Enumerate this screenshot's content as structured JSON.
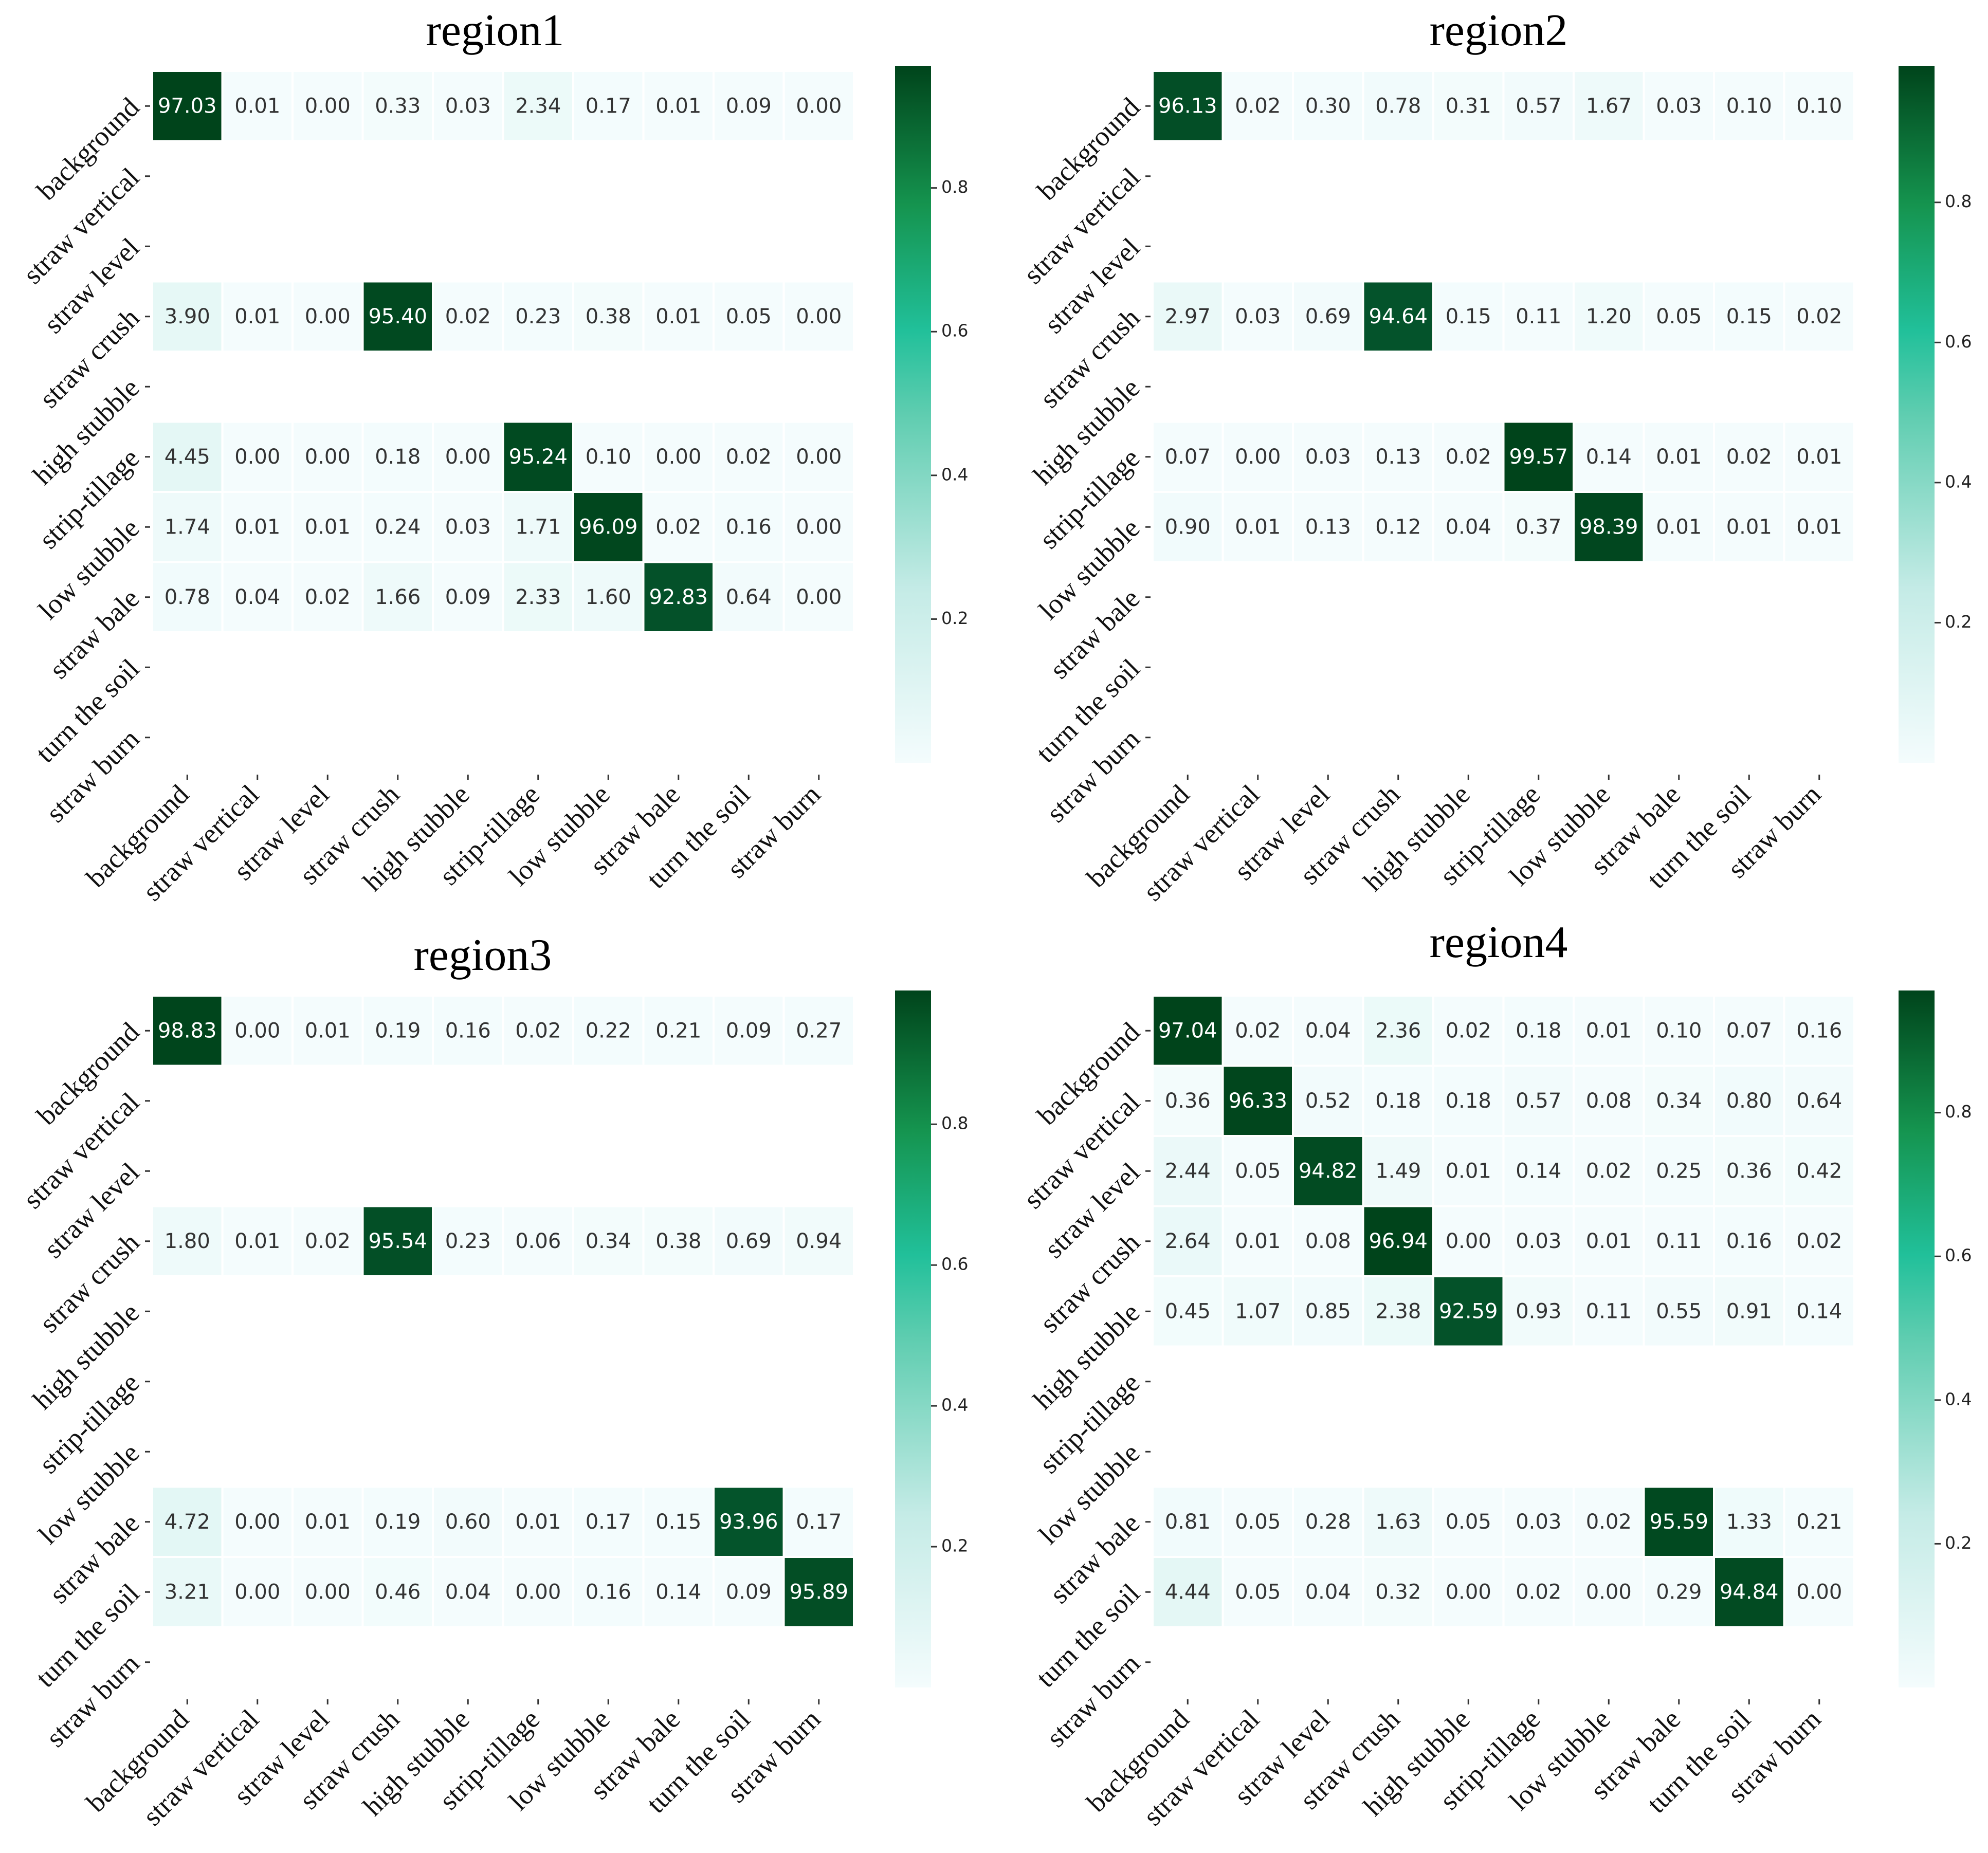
{
  "figure": {
    "classes": [
      "background",
      "straw vertical",
      "straw level",
      "straw crush",
      "high stubble",
      "strip-tillage",
      "low stubble",
      "straw bale",
      "turn the soil",
      "straw burn"
    ],
    "colorbar_ticks": [
      "0.2",
      "0.4",
      "0.6",
      "0.8"
    ],
    "colors": {
      "low": "#f4fcfd",
      "mid": "#21c09a",
      "high": "#00441b",
      "text_dark": "#333333",
      "text_light": "#ffffff"
    }
  },
  "chart_data": [
    {
      "type": "heatmap",
      "title": "region1",
      "colorbar_range": [
        0,
        0.97
      ],
      "rows": [
        {
          "label_index": 0,
          "values": [
            97.03,
            0.01,
            0.0,
            0.33,
            0.03,
            2.34,
            0.17,
            0.01,
            0.09,
            0.0
          ],
          "text": [
            "97.03",
            "0.01",
            "0.00",
            "0.33",
            "0.03",
            "2.34",
            "0.17",
            "0.01",
            "0.09",
            "0.00"
          ]
        },
        {
          "label_index": 3,
          "values": [
            3.9,
            0.01,
            0.0,
            95.4,
            0.02,
            0.23,
            0.38,
            0.01,
            0.05,
            0.0
          ],
          "text": [
            "3.90",
            "0.01",
            "0.00",
            "95.40",
            "0.02",
            "0.23",
            "0.38",
            "0.01",
            "0.05",
            "0.00"
          ]
        },
        {
          "label_index": 5,
          "values": [
            4.45,
            0.0,
            0.0,
            0.18,
            0.0,
            95.24,
            0.1,
            0.0,
            0.02,
            0.0
          ],
          "text": [
            "4.45",
            "0.00",
            "0.00",
            "0.18",
            "0.00",
            "95.24",
            "0.10",
            "0.00",
            "0.02",
            "0.00"
          ]
        },
        {
          "label_index": 6,
          "values": [
            1.74,
            0.01,
            0.01,
            0.24,
            0.03,
            1.71,
            96.09,
            0.02,
            0.16,
            0.0
          ],
          "text": [
            "1.74",
            "0.01",
            "0.01",
            "0.24",
            "0.03",
            "1.71",
            "96.09",
            "0.02",
            "0.16",
            "0.00"
          ]
        },
        {
          "label_index": 7,
          "values": [
            0.78,
            0.04,
            0.02,
            1.66,
            0.09,
            2.33,
            1.6,
            92.83,
            0.64,
            0.0
          ],
          "text": [
            "0.78",
            "0.04",
            "0.02",
            "1.66",
            "0.09",
            "2.33",
            "1.60",
            "92.83",
            "0.64",
            "0.00"
          ]
        }
      ]
    },
    {
      "type": "heatmap",
      "title": "region2",
      "colorbar_range": [
        0,
        0.995
      ],
      "rows": [
        {
          "label_index": 0,
          "values": [
            96.13,
            0.02,
            0.3,
            0.78,
            0.31,
            0.57,
            1.67,
            0.03,
            0.1,
            0.1
          ],
          "text": [
            "96.13",
            "0.02",
            "0.30",
            "0.78",
            "0.31",
            "0.57",
            "1.67",
            "0.03",
            "0.10",
            "0.10"
          ]
        },
        {
          "label_index": 3,
          "values": [
            2.97,
            0.03,
            0.69,
            94.64,
            0.15,
            0.11,
            1.2,
            0.05,
            0.15,
            0.02
          ],
          "text": [
            "2.97",
            "0.03",
            "0.69",
            "94.64",
            "0.15",
            "0.11",
            "1.20",
            "0.05",
            "0.15",
            "0.02"
          ]
        },
        {
          "label_index": 5,
          "values": [
            0.07,
            0.0,
            0.03,
            0.13,
            0.02,
            99.57,
            0.14,
            0.01,
            0.02,
            0.01
          ],
          "text": [
            "0.07",
            "0.00",
            "0.03",
            "0.13",
            "0.02",
            "99.57",
            "0.14",
            "0.01",
            "0.02",
            "0.01"
          ]
        },
        {
          "label_index": 6,
          "values": [
            0.9,
            0.01,
            0.13,
            0.12,
            0.04,
            0.37,
            98.39,
            0.01,
            0.01,
            0.01
          ],
          "text": [
            "0.90",
            "0.01",
            "0.13",
            "0.12",
            "0.04",
            "0.37",
            "98.39",
            "0.01",
            "0.01",
            "0.01"
          ]
        }
      ]
    },
    {
      "type": "heatmap",
      "title": "region3",
      "colorbar_range": [
        0,
        0.99
      ],
      "rows": [
        {
          "label_index": 0,
          "values": [
            98.83,
            0.0,
            0.01,
            0.19,
            0.16,
            0.02,
            0.22,
            0.21,
            0.09,
            0.27
          ],
          "text": [
            "98.83",
            "0.00",
            "0.01",
            "0.19",
            "0.16",
            "0.02",
            "0.22",
            "0.21",
            "0.09",
            "0.27"
          ]
        },
        {
          "label_index": 3,
          "values": [
            1.8,
            0.01,
            0.02,
            95.54,
            0.23,
            0.06,
            0.34,
            0.38,
            0.69,
            0.94
          ],
          "text": [
            "1.80",
            "0.01",
            "0.02",
            "95.54",
            "0.23",
            "0.06",
            "0.34",
            "0.38",
            "0.69",
            "0.94"
          ]
        },
        {
          "label_index": 7,
          "values": [
            4.72,
            0.0,
            0.01,
            0.19,
            0.6,
            0.01,
            0.17,
            0.15,
            93.96,
            0.17
          ],
          "text": [
            "4.72",
            "0.00",
            "0.01",
            "0.19",
            "0.60",
            "0.01",
            "0.17",
            "0.15",
            "93.96",
            "0.17"
          ]
        },
        {
          "label_index": 8,
          "values": [
            3.21,
            0.0,
            0.0,
            0.46,
            0.04,
            0.0,
            0.16,
            0.14,
            0.09,
            95.89
          ],
          "text": [
            "3.21",
            "0.00",
            "0.00",
            "0.46",
            "0.04",
            "0.00",
            "0.16",
            "0.14",
            "0.09",
            "95.89"
          ]
        }
      ]
    },
    {
      "type": "heatmap",
      "title": "region4",
      "colorbar_range": [
        0,
        0.97
      ],
      "rows": [
        {
          "label_index": 0,
          "values": [
            97.04,
            0.02,
            0.04,
            2.36,
            0.02,
            0.18,
            0.01,
            0.1,
            0.07,
            0.16
          ],
          "text": [
            "97.04",
            "0.02",
            "0.04",
            "2.36",
            "0.02",
            "0.18",
            "0.01",
            "0.10",
            "0.07",
            "0.16"
          ]
        },
        {
          "label_index": 1,
          "values": [
            0.36,
            96.33,
            0.52,
            0.18,
            0.18,
            0.57,
            0.08,
            0.34,
            0.8,
            0.64
          ],
          "text": [
            "0.36",
            "96.33",
            "0.52",
            "0.18",
            "0.18",
            "0.57",
            "0.08",
            "0.34",
            "0.80",
            "0.64"
          ]
        },
        {
          "label_index": 2,
          "values": [
            2.44,
            0.05,
            94.82,
            1.49,
            0.01,
            0.14,
            0.02,
            0.25,
            0.36,
            0.42
          ],
          "text": [
            "2.44",
            "0.05",
            "94.82",
            "1.49",
            "0.01",
            "0.14",
            "0.02",
            "0.25",
            "0.36",
            "0.42"
          ]
        },
        {
          "label_index": 3,
          "values": [
            2.64,
            0.01,
            0.08,
            96.94,
            0.0,
            0.03,
            0.01,
            0.11,
            0.16,
            0.02
          ],
          "text": [
            "2.64",
            "0.01",
            "0.08",
            "96.94",
            "0.00",
            "0.03",
            "0.01",
            "0.11",
            "0.16",
            "0.02"
          ]
        },
        {
          "label_index": 4,
          "values": [
            0.45,
            1.07,
            0.85,
            2.38,
            92.59,
            0.93,
            0.11,
            0.55,
            0.91,
            0.14
          ],
          "text": [
            "0.45",
            "1.07",
            "0.85",
            "2.38",
            "92.59",
            "0.93",
            "0.11",
            "0.55",
            "0.91",
            "0.14"
          ]
        },
        {
          "label_index": 7,
          "values": [
            0.81,
            0.05,
            0.28,
            1.63,
            0.05,
            0.03,
            0.02,
            95.59,
            1.33,
            0.21
          ],
          "text": [
            "0.81",
            "0.05",
            "0.28",
            "1.63",
            "0.05",
            "0.03",
            "0.02",
            "95.59",
            "1.33",
            "0.21"
          ]
        },
        {
          "label_index": 8,
          "values": [
            4.44,
            0.05,
            0.04,
            0.32,
            0.0,
            0.02,
            0.0,
            0.29,
            94.84,
            0.0
          ],
          "text": [
            "4.44",
            "0.05",
            "0.04",
            "0.32",
            "0.00",
            "0.02",
            "0.00",
            "0.29",
            "94.84",
            "0.00"
          ]
        }
      ]
    }
  ]
}
